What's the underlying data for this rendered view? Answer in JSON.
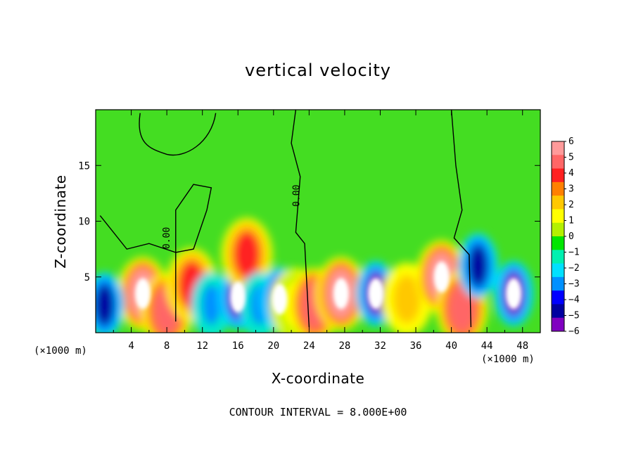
{
  "chart_data": {
    "type": "heatmap",
    "title": "vertical velocity",
    "xlabel": "X-coordinate",
    "ylabel": "Z-coordinate",
    "x_unit_label": "(×1000 m)",
    "xlim": [
      0,
      50
    ],
    "ylim": [
      0,
      20
    ],
    "x_ticks": [
      4,
      8,
      12,
      16,
      20,
      24,
      28,
      32,
      36,
      40,
      44,
      48
    ],
    "y_ticks": [
      5,
      10,
      15
    ],
    "colorbar": {
      "min": -6,
      "max": 6,
      "tick_labels": [
        "6",
        "5",
        "4",
        "3",
        "2",
        "1",
        "0",
        "−1",
        "−2",
        "−3",
        "−4",
        "−5",
        "−6"
      ],
      "colors_top_to_bottom": [
        "#ff9a9a",
        "#ff6666",
        "#ff2020",
        "#ff8000",
        "#ffc800",
        "#ffff00",
        "#b4f000",
        "#00e600",
        "#00f0b0",
        "#00e0ff",
        "#0090ff",
        "#0000ff",
        "#0000a0",
        "#8000c0"
      ]
    },
    "contour_label": "0.00",
    "footer": "CONTOUR INTERVAL = 8.000E+00",
    "features": [
      {
        "x": 5.3,
        "z": 3.5,
        "peak": 6
      },
      {
        "x": 8.0,
        "z": 2.0,
        "peak": 5
      },
      {
        "x": 10.8,
        "z": 4.3,
        "peak": 4
      },
      {
        "x": 13.0,
        "z": 2.5,
        "peak": -3
      },
      {
        "x": 16.0,
        "z": 3.2,
        "peak": -6
      },
      {
        "x": 17.0,
        "z": 7.0,
        "peak": 4
      },
      {
        "x": 18.4,
        "z": 2.5,
        "peak": -3
      },
      {
        "x": 20.7,
        "z": 3.0,
        "peak": -6
      },
      {
        "x": 22.5,
        "z": 2.5,
        "peak": 1
      },
      {
        "x": 24.6,
        "z": 2.5,
        "peak": 5
      },
      {
        "x": 27.6,
        "z": 3.5,
        "peak": 6
      },
      {
        "x": 31.5,
        "z": 3.5,
        "peak": -6
      },
      {
        "x": 35.0,
        "z": 3.0,
        "peak": 2
      },
      {
        "x": 38.9,
        "z": 5.0,
        "peak": 6
      },
      {
        "x": 41.2,
        "z": 2.2,
        "peak": 5
      },
      {
        "x": 43.0,
        "z": 6.0,
        "peak": -5
      },
      {
        "x": 47.0,
        "z": 3.5,
        "peak": -6
      },
      {
        "x": 1.0,
        "z": 2.5,
        "peak": -5
      }
    ]
  }
}
